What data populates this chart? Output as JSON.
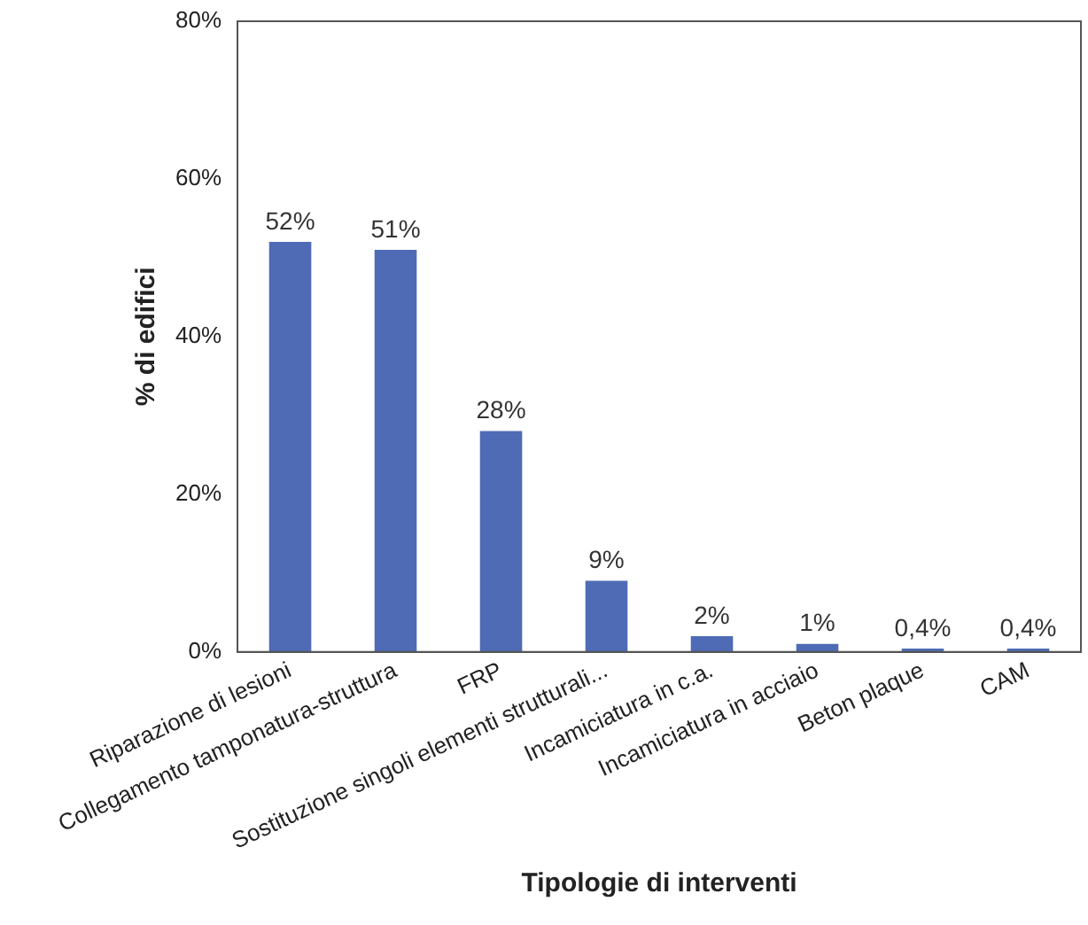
{
  "chart_data": {
    "type": "bar",
    "xlabel": "Tipologie di interventi",
    "ylabel": "% di edifici",
    "categories": [
      "Riparazione di lesioni",
      "Collegamento tamponatura-struttura",
      "FRP",
      "Sostituzione singoli elementi strutturali...",
      "Incamiciatura in c.a.",
      "Incamiciatura in acciaio",
      "Beton plaque",
      "CAM"
    ],
    "values": [
      52,
      51,
      28,
      9,
      2,
      1,
      0.4,
      0.4
    ],
    "value_labels": [
      "52%",
      "51%",
      "28%",
      "9%",
      "2%",
      "1%",
      "0,4%",
      "0,4%"
    ],
    "color": "#4f6bb5",
    "ylim": [
      0,
      80
    ],
    "yticks": [
      {
        "value": 0,
        "label": "0%"
      },
      {
        "value": 20,
        "label": "20%"
      },
      {
        "value": 40,
        "label": "40%"
      },
      {
        "value": 60,
        "label": "60%"
      },
      {
        "value": 80,
        "label": "80%"
      }
    ],
    "grid": false,
    "legend": false
  }
}
